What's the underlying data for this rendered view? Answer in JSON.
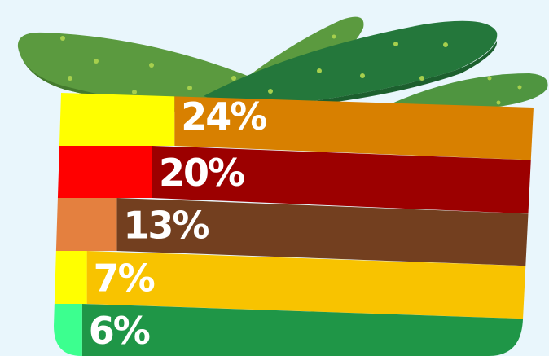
{
  "chart_data": {
    "type": "bar",
    "orientation": "horizontal",
    "stacked": true,
    "categories": [
      "",
      "",
      "",
      "",
      ""
    ],
    "series": [
      {
        "values": [
          24,
          20,
          13,
          7,
          6
        ]
      },
      {
        "values": [
          76,
          80,
          87,
          93,
          94
        ]
      }
    ],
    "data_labels": [
      "24%",
      "20%",
      "13%",
      "7%",
      "6%"
    ],
    "xlim": [
      0,
      100
    ],
    "grid": false,
    "legend": "none",
    "colors": {
      "highlight": [
        "#ffff00",
        "#ff0000",
        "#e4803f",
        "#ffff00",
        "#3cff8f"
      ],
      "remainder": [
        "#d88000",
        "#9c0000",
        "#733f1f",
        "#f8c300",
        "#1f9647"
      ]
    },
    "decoration": {
      "icon": "cucumber-icon",
      "cucumber_colors": [
        "#5b9a3f",
        "#24773b",
        "#3f8a3a"
      ],
      "seed_color": "#a6cf4d"
    }
  }
}
